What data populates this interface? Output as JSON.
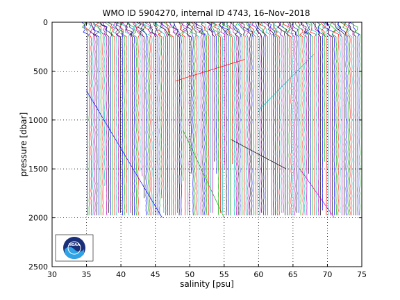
{
  "chart_data": {
    "type": "line",
    "title": "WMO ID 5904270, internal ID 4743, 16–Nov–2018",
    "xlabel": "salinity [psu]",
    "ylabel": "pressure [dbar]",
    "xlim": [
      30,
      75
    ],
    "ylim": [
      0,
      2500
    ],
    "y_reversed": true,
    "grid": "dotted",
    "x_ticks": [
      "30",
      "35",
      "40",
      "45",
      "50",
      "55",
      "60",
      "65",
      "70",
      "75"
    ],
    "y_ticks": [
      "0",
      "500",
      "1000",
      "1500",
      "2000",
      "2500"
    ],
    "profiles": {
      "description": "waterfall of salinity profiles, each successive profile offset in salinity",
      "count": 140,
      "x_offset_start": 34.8,
      "x_offset_end": 74.4,
      "max_pressure": 2000,
      "colors": [
        "#0000ff",
        "#00aa00",
        "#ff0000",
        "#00bfbf",
        "#bf00bf",
        "#000000"
      ]
    },
    "logo": "noaa-logo"
  }
}
